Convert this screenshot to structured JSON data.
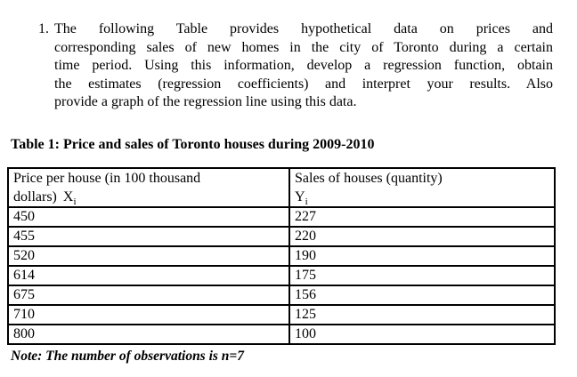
{
  "page": {
    "background": "#ffffff",
    "text_color": "#000000"
  },
  "problem": {
    "number": "1.",
    "lines": [
      "The following Table provides hypothetical data on prices and",
      "corresponding sales of new homes in the city of Toronto during a certain",
      "time period. Using this information, develop a regression function, obtain",
      "the estimates (regression coefficients) and interpret your results. Also",
      "provide a graph of the regression line using this data."
    ]
  },
  "table": {
    "caption": "Table 1: Price and sales of Toronto houses during 2009-2010",
    "col1": {
      "line1": "Price per house (in 100 thousand",
      "line2_prefix": "dollars)",
      "var": "X",
      "sub": "i"
    },
    "col2": {
      "line1": "Sales of houses (quantity)",
      "var": "Y",
      "sub": "i"
    },
    "rows": [
      {
        "price": "450",
        "sales": "227"
      },
      {
        "price": "455",
        "sales": "220"
      },
      {
        "price": "520",
        "sales": "190"
      },
      {
        "price": "614",
        "sales": "175"
      },
      {
        "price": "675",
        "sales": "156"
      },
      {
        "price": "710",
        "sales": "125"
      },
      {
        "price": "800",
        "sales": "100"
      }
    ],
    "note": "Note: The number of observations is n=7"
  }
}
